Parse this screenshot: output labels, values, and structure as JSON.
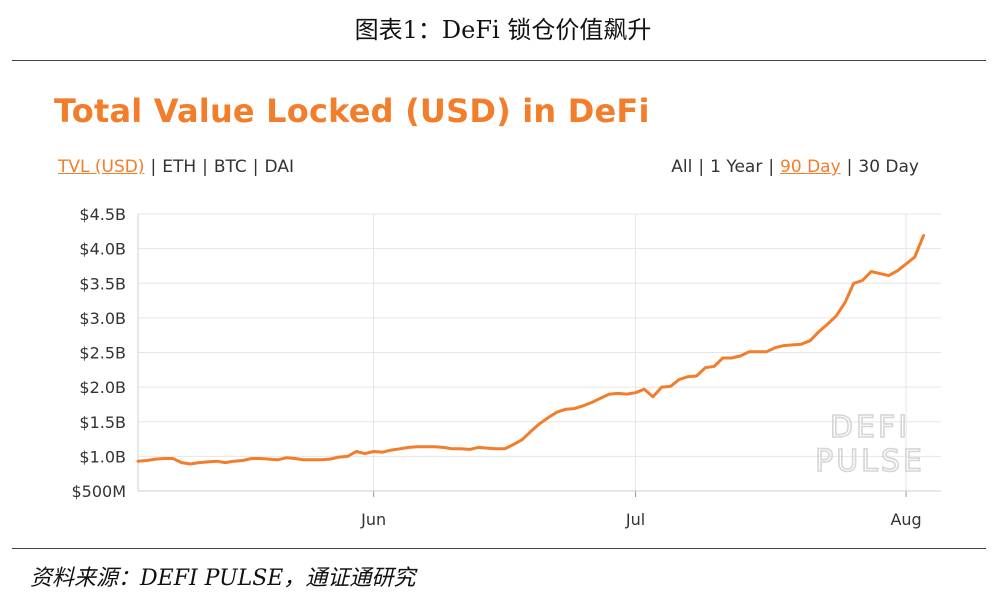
{
  "report_title": "图表1：DeFi 锁仓价值飙升",
  "source": "资料来源：DEFI PULSE，通证通研究",
  "tabs_left": [
    {
      "label": "TVL (USD)",
      "active": true
    },
    {
      "label": "ETH",
      "active": false
    },
    {
      "label": "BTC",
      "active": false
    },
    {
      "label": "DAI",
      "active": false
    }
  ],
  "tabs_right": [
    {
      "label": "All",
      "active": false
    },
    {
      "label": "1 Year",
      "active": false
    },
    {
      "label": "90 Day",
      "active": true
    },
    {
      "label": "30 Day",
      "active": false
    }
  ],
  "watermark": [
    "DEFI",
    "PULSE"
  ],
  "colors": {
    "accent": "#f27d2a",
    "grid": "#e6e6e6",
    "axis_text": "#333333"
  },
  "chart_data": {
    "type": "line",
    "title": "Total Value Locked (USD) in DeFi",
    "xlabel": "",
    "ylabel": "",
    "ylim": [
      0.5,
      4.5
    ],
    "y_ticks": [
      {
        "value": 4.5,
        "label": "$4.5B"
      },
      {
        "value": 4.0,
        "label": "$4.0B"
      },
      {
        "value": 3.5,
        "label": "$3.5B"
      },
      {
        "value": 3.0,
        "label": "$3.0B"
      },
      {
        "value": 2.5,
        "label": "$2.5B"
      },
      {
        "value": 2.0,
        "label": "$2.0B"
      },
      {
        "value": 1.5,
        "label": "$1.5B"
      },
      {
        "value": 1.0,
        "label": "$1.0B"
      },
      {
        "value": 0.5,
        "label": "$500M"
      }
    ],
    "x_range": [
      "2020-05-05",
      "2020-08-05"
    ],
    "x_ticks": [
      {
        "date": "2020-06-01",
        "label": "Jun"
      },
      {
        "date": "2020-07-01",
        "label": "Jul"
      },
      {
        "date": "2020-08-01",
        "label": "Aug"
      }
    ],
    "grid": true,
    "series": [
      {
        "x": [
          "2020-05-05",
          "2020-05-06",
          "2020-05-07",
          "2020-05-08",
          "2020-05-09",
          "2020-05-10",
          "2020-05-11",
          "2020-05-12",
          "2020-05-13",
          "2020-05-14",
          "2020-05-15",
          "2020-05-16",
          "2020-05-17",
          "2020-05-18",
          "2020-05-19",
          "2020-05-20",
          "2020-05-21",
          "2020-05-22",
          "2020-05-23",
          "2020-05-24",
          "2020-05-25",
          "2020-05-26",
          "2020-05-27",
          "2020-05-28",
          "2020-05-29",
          "2020-05-30",
          "2020-05-31",
          "2020-06-01",
          "2020-06-02",
          "2020-06-03",
          "2020-06-04",
          "2020-06-05",
          "2020-06-06",
          "2020-06-07",
          "2020-06-08",
          "2020-06-09",
          "2020-06-10",
          "2020-06-11",
          "2020-06-12",
          "2020-06-13",
          "2020-06-14",
          "2020-06-15",
          "2020-06-16",
          "2020-06-17",
          "2020-06-18",
          "2020-06-19",
          "2020-06-20",
          "2020-06-21",
          "2020-06-22",
          "2020-06-23",
          "2020-06-24",
          "2020-06-25",
          "2020-06-26",
          "2020-06-27",
          "2020-06-28",
          "2020-06-29",
          "2020-06-30",
          "2020-07-01",
          "2020-07-02",
          "2020-07-03",
          "2020-07-04",
          "2020-07-05",
          "2020-07-06",
          "2020-07-07",
          "2020-07-08",
          "2020-07-09",
          "2020-07-10",
          "2020-07-11",
          "2020-07-12",
          "2020-07-13",
          "2020-07-14",
          "2020-07-15",
          "2020-07-16",
          "2020-07-17",
          "2020-07-18",
          "2020-07-19",
          "2020-07-20",
          "2020-07-21",
          "2020-07-22",
          "2020-07-23",
          "2020-07-24",
          "2020-07-25",
          "2020-07-26",
          "2020-07-27",
          "2020-07-28",
          "2020-07-29",
          "2020-07-30",
          "2020-07-31",
          "2020-08-01",
          "2020-08-02",
          "2020-08-03"
        ],
        "values": [
          0.93,
          0.94,
          0.96,
          0.97,
          0.97,
          0.91,
          0.89,
          0.91,
          0.92,
          0.93,
          0.91,
          0.93,
          0.94,
          0.97,
          0.97,
          0.96,
          0.95,
          0.98,
          0.97,
          0.95,
          0.95,
          0.95,
          0.96,
          0.99,
          1.0,
          1.07,
          1.04,
          1.07,
          1.06,
          1.09,
          1.11,
          1.13,
          1.14,
          1.14,
          1.14,
          1.13,
          1.11,
          1.11,
          1.1,
          1.13,
          1.12,
          1.11,
          1.11,
          1.17,
          1.24,
          1.36,
          1.47,
          1.56,
          1.64,
          1.68,
          1.69,
          1.73,
          1.78,
          1.84,
          1.9,
          1.91,
          1.9,
          1.92,
          1.97,
          1.86,
          2.0,
          2.01,
          2.11,
          2.15,
          2.16,
          2.28,
          2.3,
          2.42,
          2.42,
          2.45,
          2.51,
          2.51,
          2.51,
          2.57,
          2.6,
          2.61,
          2.62,
          2.67,
          2.8,
          2.91,
          3.03,
          3.22,
          3.5,
          3.54,
          3.67,
          3.64,
          3.61,
          3.68,
          3.78,
          3.88,
          4.19
        ]
      }
    ]
  }
}
